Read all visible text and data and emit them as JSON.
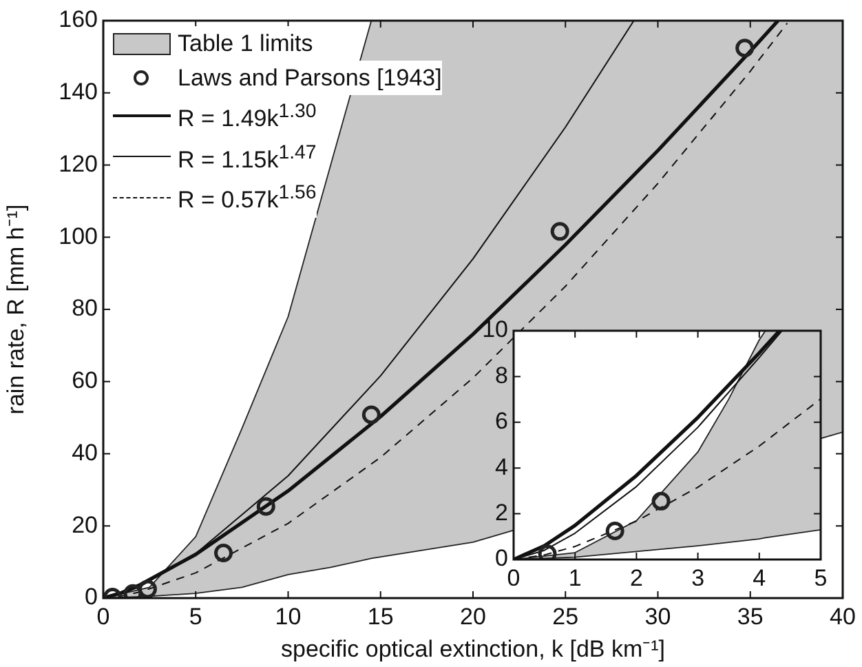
{
  "chart_data": [
    {
      "type": "line",
      "xlabel": "specific optical extinction, k [dB km⁻¹]",
      "ylabel": "rain rate, R [mm h⁻¹]",
      "xlim": [
        0,
        40
      ],
      "xticks": [
        0,
        5,
        10,
        15,
        20,
        25,
        30,
        35,
        40
      ],
      "ylim": [
        0,
        160
      ],
      "yticks": [
        0,
        20,
        40,
        60,
        80,
        100,
        120,
        140,
        160
      ],
      "legend": "top left",
      "series": [
        {
          "name": "Table 1 limits",
          "type": "area",
          "color": "#c8c8c8",
          "x": [
            0,
            2.5,
            5,
            7.5,
            10,
            12.3,
            14.5,
            20,
            22,
            39,
            40
          ],
          "values": [
            0,
            3,
            17,
            47,
            78,
            120,
            160,
            160,
            160,
            160,
            160
          ]
        },
        {
          "type": "line",
          "color": "#222222",
          "line_style": "solid",
          "x": [
            0,
            2.5,
            5,
            7.5,
            10,
            12.3,
            14.5,
            20,
            22,
            39,
            40
          ],
          "values": [
            0,
            0.5,
            1.3,
            3,
            6.5,
            8.5,
            11,
            15.5,
            18.5,
            44.5,
            46
          ]
        },
        {
          "name": "Laws and Parsons [1943]",
          "type": "scatter",
          "color": "#222222",
          "marker": "circle",
          "x": [
            0.5,
            1.6,
            2.4,
            6.5,
            8.8,
            14.5,
            24.7,
            34.7
          ],
          "values": [
            0.3,
            1.3,
            2.5,
            12.5,
            25.4,
            50.8,
            101.6,
            152.4
          ]
        },
        {
          "name": "R = 1.49k$^{1.30}$",
          "type": "line",
          "color": "#111111",
          "line_style": "solid",
          "x": [
            0,
            1,
            2,
            5,
            10,
            15,
            20,
            25,
            30,
            35,
            36.5
          ],
          "values": [
            0,
            1.5,
            3.7,
            12.1,
            29.7,
            50.3,
            73.1,
            97.9,
            124,
            151.5,
            160
          ]
        },
        {
          "name": "R = 1.15k$^{1.47}$",
          "type": "line",
          "color": "#111111",
          "line_style": "solid",
          "x": [
            0,
            1,
            2,
            5,
            10,
            15,
            20,
            25,
            28.7
          ],
          "values": [
            0,
            1.2,
            3.2,
            12.3,
            33.9,
            61.6,
            94,
            130.5,
            160
          ]
        },
        {
          "name": "R = 0.57k$^{1.56}$",
          "type": "line",
          "color": "#111111",
          "line_style": "dashed",
          "x": [
            0,
            1,
            2,
            5,
            10,
            15,
            20,
            25,
            30,
            35,
            37
          ],
          "values": [
            0,
            0.6,
            1.7,
            7,
            20.7,
            39,
            61,
            86.4,
            114.9,
            146,
            159.3
          ]
        }
      ]
    },
    {
      "type": "line",
      "xlim": [
        0,
        5
      ],
      "xticks": [
        0,
        1,
        2,
        3,
        4,
        5
      ],
      "ylim": [
        0,
        10
      ],
      "yticks": [
        0,
        2,
        4,
        6,
        8,
        10
      ],
      "series": [
        {
          "type": "area",
          "color": "#c8c8c8",
          "x": [
            0,
            1,
            2,
            3,
            3.5,
            4,
            4.1,
            5
          ],
          "values": [
            0,
            0.3,
            1.7,
            4.7,
            7,
            9.6,
            10,
            10
          ]
        },
        {
          "type": "line",
          "color": "#222222",
          "line_style": "solid",
          "x": [
            0,
            1,
            2,
            3,
            3.5,
            4,
            4.1,
            5
          ],
          "values": [
            0,
            0.1,
            0.35,
            0.6,
            0.75,
            0.9,
            0.95,
            1.3
          ]
        },
        {
          "type": "scatter",
          "color": "#222222",
          "marker": "circle",
          "x": [
            0.55,
            1.65,
            2.4
          ],
          "values": [
            0.25,
            1.25,
            2.55
          ]
        },
        {
          "type": "line",
          "color": "#111111",
          "line_style": "solid",
          "x": [
            0,
            0.5,
            1,
            2,
            3,
            4,
            4.33
          ],
          "values": [
            0,
            0.6,
            1.49,
            3.67,
            6.21,
            9.03,
            10
          ]
        },
        {
          "type": "line",
          "color": "#111111",
          "line_style": "solid",
          "x": [
            0,
            0.5,
            1,
            2,
            3,
            4,
            4.37
          ],
          "values": [
            0,
            0.4,
            1.15,
            3.19,
            5.78,
            8.83,
            10
          ]
        },
        {
          "type": "line",
          "color": "#111111",
          "line_style": "dashed",
          "x": [
            0,
            0.5,
            1,
            2,
            3,
            4,
            5
          ],
          "values": [
            0,
            0.2,
            0.57,
            1.68,
            3.16,
            4.96,
            7.02
          ]
        }
      ]
    }
  ]
}
